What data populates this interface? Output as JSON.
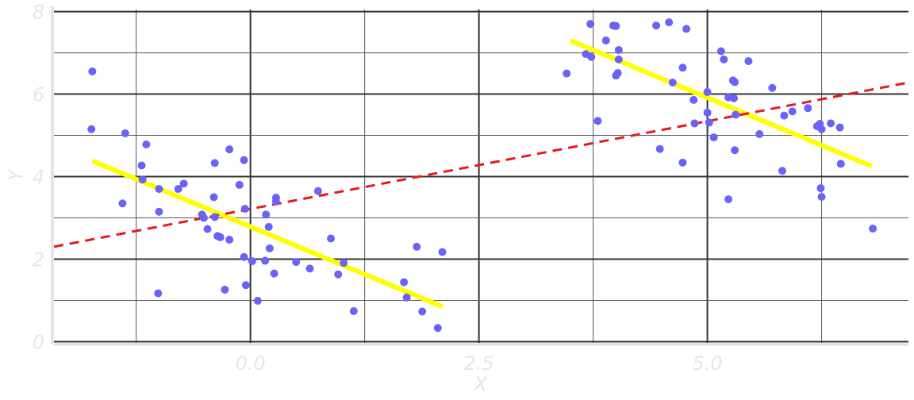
{
  "chart_data": {
    "type": "scatter",
    "title": "",
    "xlabel": "X",
    "ylabel": "Y",
    "xlim": [
      -2.15,
      7.2
    ],
    "ylim": [
      -0.03,
      8.05
    ],
    "x_ticks": [
      0.0,
      2.5,
      5.0
    ],
    "x_tick_labels": [
      "0.0",
      "2.5",
      "5.0"
    ],
    "y_ticks": [
      0,
      2,
      4,
      6,
      8
    ],
    "y_tick_labels": [
      "0",
      "2",
      "4",
      "6",
      "8"
    ],
    "grid": true,
    "legend": "none",
    "colors": {
      "points": "#6b63f7",
      "cluster_fit": "#ffff00",
      "overall_fit": "#e8191c",
      "major_grid": "#333333",
      "minor_grid": "#555555",
      "axis": "#dddddd"
    },
    "points": [
      [
        -1.73,
        6.55
      ],
      [
        -1.74,
        5.15
      ],
      [
        -1.37,
        5.05
      ],
      [
        -1.14,
        4.78
      ],
      [
        -1.19,
        4.27
      ],
      [
        -1.18,
        3.93
      ],
      [
        -1.4,
        3.35
      ],
      [
        -1.0,
        3.15
      ],
      [
        -1.0,
        3.7
      ],
      [
        -0.73,
        3.83
      ],
      [
        -0.79,
        3.7
      ],
      [
        -0.53,
        3.08
      ],
      [
        -0.51,
        3.0
      ],
      [
        -0.39,
        3.02
      ],
      [
        -0.4,
        3.5
      ],
      [
        -0.47,
        2.73
      ],
      [
        -0.36,
        2.56
      ],
      [
        -0.33,
        2.53
      ],
      [
        -0.23,
        2.47
      ],
      [
        -0.39,
        4.33
      ],
      [
        -0.23,
        4.66
      ],
      [
        -0.07,
        4.4
      ],
      [
        -0.12,
        3.8
      ],
      [
        -0.06,
        3.22
      ],
      [
        0.17,
        3.08
      ],
      [
        0.28,
        3.49
      ],
      [
        0.28,
        3.4
      ],
      [
        0.2,
        2.78
      ],
      [
        0.21,
        2.26
      ],
      [
        0.02,
        1.95
      ],
      [
        0.16,
        1.96
      ],
      [
        -0.07,
        2.05
      ],
      [
        -0.05,
        1.37
      ],
      [
        -0.28,
        1.26
      ],
      [
        0.08,
        0.99
      ],
      [
        0.26,
        1.65
      ],
      [
        0.5,
        1.93
      ],
      [
        0.65,
        1.77
      ],
      [
        0.74,
        3.65
      ],
      [
        0.88,
        2.5
      ],
      [
        0.96,
        1.63
      ],
      [
        1.02,
        1.91
      ],
      [
        1.13,
        0.74
      ],
      [
        1.68,
        1.44
      ],
      [
        1.71,
        1.07
      ],
      [
        1.82,
        2.3
      ],
      [
        1.88,
        0.73
      ],
      [
        2.1,
        2.17
      ],
      [
        2.05,
        0.33
      ],
      [
        -1.01,
        1.17
      ],
      [
        3.46,
        6.5
      ],
      [
        3.67,
        6.97
      ],
      [
        3.73,
        6.9
      ],
      [
        3.72,
        7.7
      ],
      [
        3.89,
        7.3
      ],
      [
        3.97,
        7.66
      ],
      [
        4.0,
        7.65
      ],
      [
        4.03,
        7.07
      ],
      [
        4.03,
        6.84
      ],
      [
        4.0,
        6.45
      ],
      [
        4.02,
        6.51
      ],
      [
        3.8,
        5.35
      ],
      [
        4.44,
        7.66
      ],
      [
        4.58,
        7.74
      ],
      [
        4.77,
        7.58
      ],
      [
        4.62,
        6.28
      ],
      [
        4.73,
        6.64
      ],
      [
        4.85,
        5.86
      ],
      [
        4.86,
        5.29
      ],
      [
        4.48,
        4.67
      ],
      [
        4.73,
        4.34
      ],
      [
        5.0,
        6.05
      ],
      [
        5.0,
        5.55
      ],
      [
        5.02,
        5.31
      ],
      [
        5.07,
        4.95
      ],
      [
        5.15,
        7.04
      ],
      [
        5.18,
        6.84
      ],
      [
        5.23,
        5.92
      ],
      [
        5.29,
        5.9
      ],
      [
        5.28,
        6.33
      ],
      [
        5.3,
        6.29
      ],
      [
        5.31,
        5.5
      ],
      [
        5.3,
        4.64
      ],
      [
        5.23,
        3.45
      ],
      [
        5.45,
        6.8
      ],
      [
        5.57,
        5.03
      ],
      [
        5.71,
        6.15
      ],
      [
        5.84,
        5.48
      ],
      [
        5.93,
        5.58
      ],
      [
        5.82,
        4.14
      ],
      [
        6.1,
        5.66
      ],
      [
        6.2,
        5.22
      ],
      [
        6.23,
        5.28
      ],
      [
        6.25,
        5.15
      ],
      [
        6.35,
        5.29
      ],
      [
        6.45,
        5.19
      ],
      [
        6.46,
        4.31
      ],
      [
        6.24,
        3.72
      ],
      [
        6.25,
        3.51
      ],
      [
        6.81,
        2.74
      ]
    ],
    "cluster_fit_lines": [
      {
        "x": [
          -1.73,
          2.1
        ],
        "y": [
          4.38,
          0.85
        ]
      },
      {
        "x": [
          3.5,
          6.8
        ],
        "y": [
          7.3,
          4.25
        ]
      }
    ],
    "overall_fit_line": {
      "x": [
        -2.15,
        7.2
      ],
      "y": [
        2.3,
        6.28
      ]
    }
  }
}
